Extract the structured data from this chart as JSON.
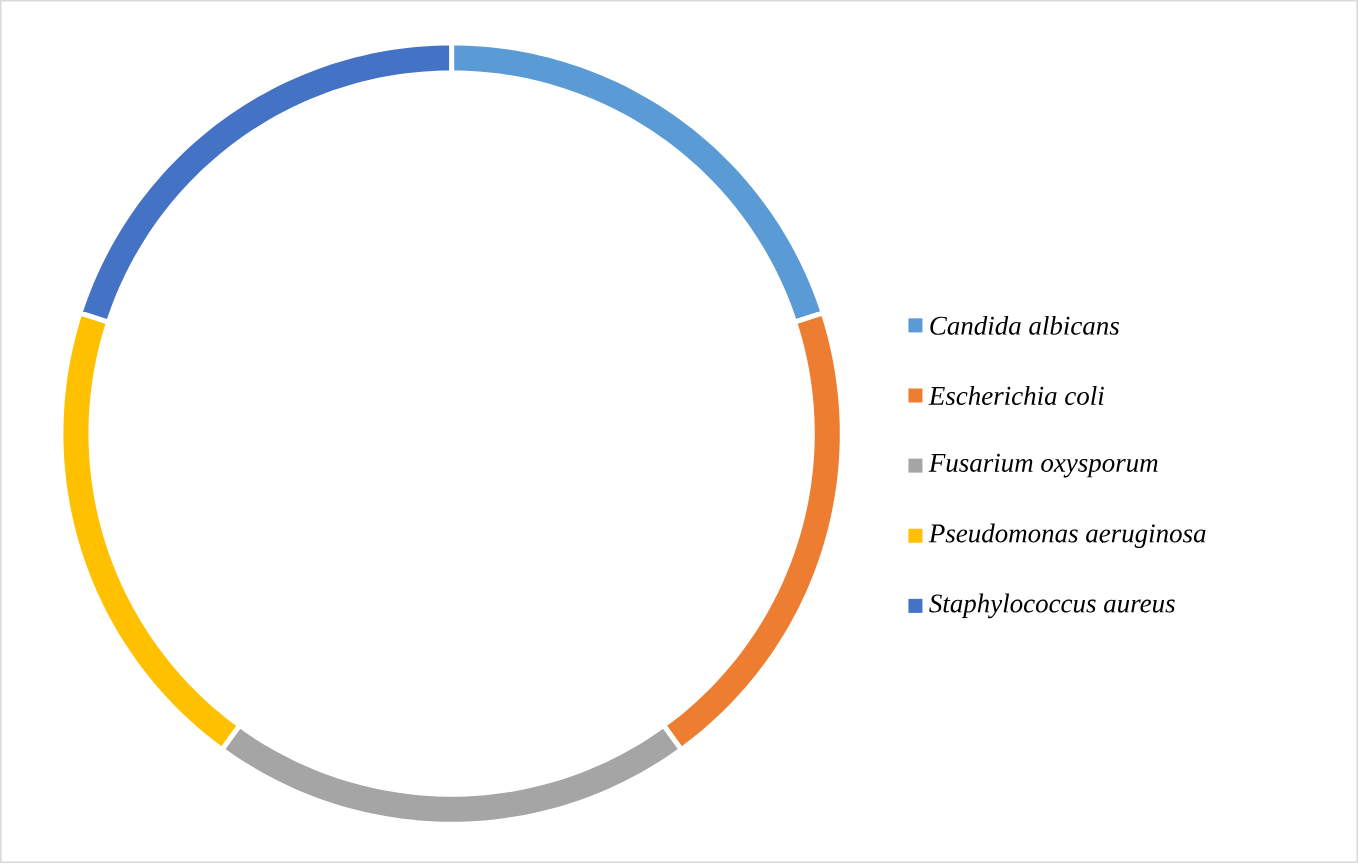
{
  "chart_data": {
    "type": "donut",
    "categories": [
      "Candida albicans",
      "Escherichia coli",
      "Fusarium oxysporum",
      "Pseudomonas aeruginosa",
      "Staphylococcus aureus"
    ],
    "values": [
      20,
      20,
      20,
      20,
      20
    ],
    "colors": [
      "#5b9bd5",
      "#ed7d31",
      "#a5a5a5",
      "#ffc000",
      "#4472c4"
    ],
    "legend": "right"
  }
}
